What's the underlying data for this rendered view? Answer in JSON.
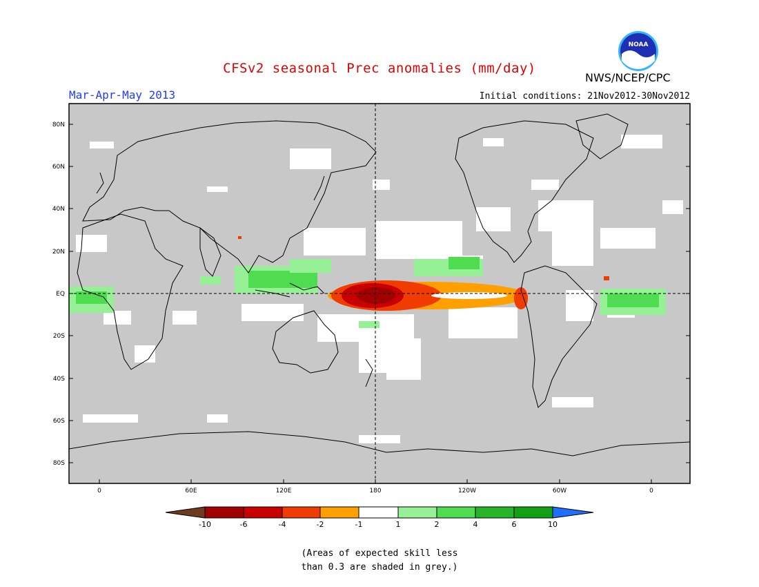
{
  "header": {
    "title": "CFSv2 seasonal Prec anomalies (mm/day)",
    "season": "Mar-Apr-May 2013",
    "initial_conditions": "Initial conditions: 21Nov2012-30Nov2012",
    "agency": "NWS/NCEP/CPC",
    "logo_text": "NOAA"
  },
  "map": {
    "lat_labels": [
      "80N",
      "60N",
      "40N",
      "20N",
      "EQ",
      "20S",
      "40S",
      "60S",
      "80S"
    ],
    "lon_labels": [
      "0",
      "60E",
      "120E",
      "180",
      "120W",
      "60W",
      "0"
    ],
    "background_color": "#c8c8c8",
    "coastline_color": "#000000",
    "reference_lines": [
      "EQ",
      "180"
    ]
  },
  "colorbar": {
    "tick_labels": [
      "-10",
      "-6",
      "-4",
      "-2",
      "-1",
      "1",
      "2",
      "4",
      "6",
      "10"
    ],
    "colors": [
      "#6e3a20",
      "#a00000",
      "#c80000",
      "#f03c00",
      "#ffa000",
      "#ffffff",
      "#96f096",
      "#50dc50",
      "#28b428",
      "#14a014",
      "#1e6eff"
    ]
  },
  "note": {
    "line1": "(Areas of expected skill less",
    "line2": "than 0.3 are shaded in grey.)"
  }
}
